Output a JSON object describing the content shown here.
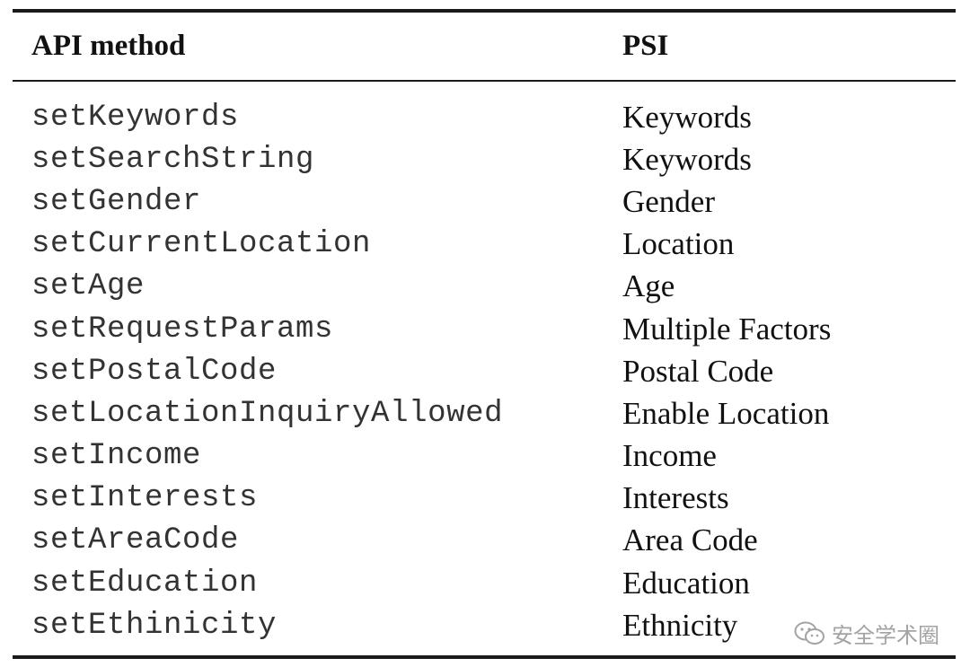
{
  "table": {
    "headers": {
      "method": "API method",
      "psi": "PSI"
    },
    "rows": [
      {
        "method": "setKeywords",
        "psi": "Keywords"
      },
      {
        "method": "setSearchString",
        "psi": "Keywords"
      },
      {
        "method": "setGender",
        "psi": "Gender"
      },
      {
        "method": "setCurrentLocation",
        "psi": "Location"
      },
      {
        "method": "setAge",
        "psi": "Age"
      },
      {
        "method": "setRequestParams",
        "psi": "Multiple Factors"
      },
      {
        "method": "setPostalCode",
        "psi": "Postal Code"
      },
      {
        "method": "setLocationInquiryAllowed",
        "psi": "Enable Location"
      },
      {
        "method": "setIncome",
        "psi": "Income"
      },
      {
        "method": "setInterests",
        "psi": "Interests"
      },
      {
        "method": "setAreaCode",
        "psi": "Area Code"
      },
      {
        "method": "setEducation",
        "psi": "Education"
      },
      {
        "method": "setEthinicity",
        "psi": "Ethnicity"
      }
    ]
  },
  "watermark": {
    "text": "安全学术圈",
    "icon": "wechat-icon"
  },
  "colors": {
    "rule": "#1a1a1a",
    "method_text": "#333333",
    "psi_text": "#111111",
    "watermark": "#9a9a9a"
  }
}
